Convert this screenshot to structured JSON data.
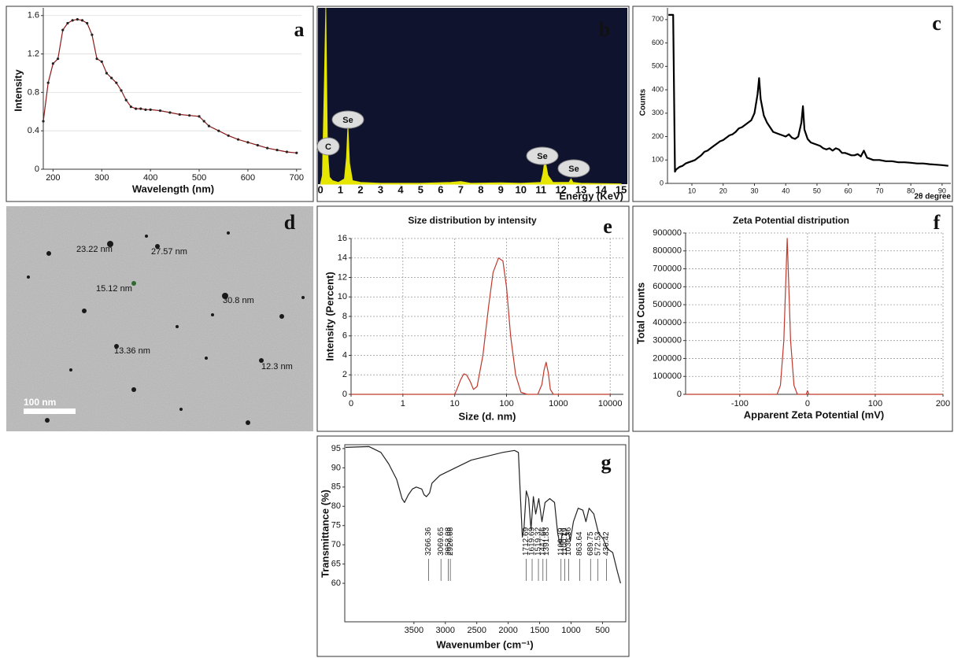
{
  "chart_data": [
    {
      "type": "line",
      "label": "a",
      "xlabel": "Wavelength (nm)",
      "ylabel": "Intensity",
      "color": "#8b1a1a",
      "markers": true,
      "grid": "y",
      "x": [
        180,
        190,
        200,
        210,
        220,
        230,
        240,
        250,
        260,
        270,
        280,
        290,
        300,
        310,
        320,
        330,
        340,
        350,
        360,
        370,
        380,
        390,
        400,
        420,
        440,
        460,
        480,
        500,
        510,
        520,
        540,
        560,
        580,
        600,
        620,
        640,
        660,
        680,
        700
      ],
      "values": [
        0.5,
        0.9,
        1.1,
        1.15,
        1.45,
        1.52,
        1.55,
        1.56,
        1.55,
        1.52,
        1.4,
        1.15,
        1.12,
        1.0,
        0.95,
        0.9,
        0.82,
        0.72,
        0.65,
        0.63,
        0.63,
        0.62,
        0.62,
        0.61,
        0.59,
        0.57,
        0.56,
        0.55,
        0.5,
        0.45,
        0.4,
        0.35,
        0.31,
        0.28,
        0.25,
        0.22,
        0.2,
        0.18,
        0.17
      ],
      "xlim": [
        180,
        710
      ],
      "ylim": [
        0,
        1.68
      ],
      "xticks": [
        200,
        300,
        400,
        500,
        600,
        700
      ],
      "yticks": [
        0,
        0.4,
        0.8,
        1.2,
        1.6
      ]
    },
    {
      "type": "area",
      "label": "b",
      "xlabel": "Energy (KeV)",
      "color": "#e6e600",
      "background": "#10132e",
      "grid": false,
      "x": [
        0,
        0.1,
        0.2,
        0.27,
        0.35,
        0.45,
        0.6,
        0.9,
        1.2,
        1.3,
        1.37,
        1.45,
        1.6,
        2,
        3,
        5,
        6.5,
        7,
        7.5,
        9,
        10,
        11,
        11.1,
        11.2,
        11.35,
        11.6,
        12.4,
        12.5,
        12.6,
        13,
        14,
        15
      ],
      "values": [
        0,
        5,
        60,
        100,
        20,
        4,
        2,
        1,
        3,
        15,
        33,
        12,
        2,
        1,
        0.5,
        0.5,
        1,
        1.5,
        0.5,
        0.8,
        0.5,
        1,
        6,
        14,
        5,
        1,
        1,
        3,
        1,
        0.5,
        0.3,
        0.2
      ],
      "annotations": [
        "C",
        "Se",
        "Se",
        "Se"
      ],
      "xlim": [
        -0.12,
        15.31
      ],
      "ylim": [
        0,
        100
      ],
      "xticks": [
        0,
        1,
        2,
        3,
        4,
        5,
        6,
        7,
        8,
        9,
        10,
        11,
        12,
        13,
        14,
        15
      ]
    },
    {
      "type": "line",
      "label": "c",
      "xlabel": "2θ degree",
      "ylabel": "Counts",
      "color": "#000000",
      "grid": false,
      "x": [
        2.5,
        4,
        4.6,
        5,
        6,
        7,
        8,
        9,
        10,
        11,
        12,
        13,
        14,
        15,
        16,
        17,
        18,
        19,
        20,
        21,
        22,
        23,
        24,
        25,
        26,
        27,
        28,
        29,
        30,
        31,
        31.5,
        32,
        33,
        34,
        35,
        36,
        37,
        38,
        39,
        40,
        41,
        42,
        43,
        44,
        45,
        45.5,
        46,
        47,
        48,
        49,
        50,
        51,
        52,
        53,
        54,
        55,
        56,
        57,
        58,
        59,
        60,
        61,
        62,
        63,
        64,
        65,
        66,
        67,
        68,
        70,
        72,
        74,
        76,
        78,
        80,
        82,
        84,
        86,
        88,
        90,
        92
      ],
      "values": [
        720,
        720,
        50,
        60,
        70,
        75,
        85,
        90,
        95,
        100,
        110,
        120,
        135,
        140,
        150,
        160,
        170,
        180,
        185,
        195,
        205,
        210,
        220,
        235,
        240,
        250,
        260,
        270,
        300,
        380,
        450,
        360,
        290,
        260,
        240,
        220,
        215,
        210,
        205,
        200,
        210,
        195,
        190,
        200,
        260,
        330,
        230,
        190,
        175,
        170,
        165,
        160,
        150,
        145,
        150,
        140,
        150,
        145,
        130,
        130,
        125,
        120,
        120,
        125,
        115,
        140,
        110,
        105,
        100,
        100,
        95,
        95,
        90,
        90,
        88,
        85,
        85,
        82,
        80,
        78,
        75
      ],
      "xlim": [
        2.2,
        92.8
      ],
      "ylim": [
        0,
        750
      ],
      "xticks": [
        10,
        20,
        30,
        40,
        50,
        60,
        70,
        80,
        90
      ],
      "yticks": [
        0,
        100,
        200,
        300,
        400,
        500,
        600,
        700
      ]
    },
    {
      "type": "line",
      "label": "e",
      "title": "Size distribution by intensity",
      "xlabel": "Size (d. nm)",
      "ylabel": "Intensity (Percent)",
      "color": "#c0392b",
      "grid": "both",
      "log_x": true,
      "x": [
        0.1,
        10,
        11,
        13,
        15,
        17,
        20,
        23,
        27,
        35,
        45,
        55,
        70,
        85,
        100,
        120,
        150,
        190,
        250,
        400,
        480,
        530,
        580,
        640,
        700,
        800,
        10000
      ],
      "values": [
        0,
        0,
        0.5,
        1.5,
        2.1,
        2.0,
        1.3,
        0.5,
        0.8,
        4,
        9,
        12.5,
        14,
        13.7,
        11,
        6,
        2,
        0.2,
        0,
        0,
        1,
        2.5,
        3.3,
        2.2,
        0.5,
        0,
        0
      ],
      "xlim": [
        0.1,
        18000
      ],
      "ylim": [
        0,
        16
      ],
      "xticks": [
        {
          "value": 0.1,
          "label": "0"
        },
        1,
        10,
        100,
        1000,
        10000
      ],
      "yticks": [
        0,
        2,
        4,
        6,
        8,
        10,
        12,
        14,
        16
      ]
    },
    {
      "type": "line",
      "label": "f",
      "title": "Zeta Potential distripution",
      "xlabel": "Apparent  Zeta Potential (mV)",
      "ylabel": "Total Counts",
      "color": "#c0392b",
      "grid": "both",
      "x": [
        -180,
        -45,
        -40,
        -35,
        -30,
        -25,
        -20,
        -15,
        -2,
        0,
        2,
        200
      ],
      "values": [
        0,
        0,
        50000,
        300000,
        870000,
        300000,
        50000,
        0,
        0,
        20000,
        0,
        0
      ],
      "xlim": [
        -180,
        200
      ],
      "ylim": [
        0,
        900000
      ],
      "xticks": [
        -100,
        0,
        100,
        200
      ],
      "yticks": [
        0,
        100000,
        200000,
        300000,
        400000,
        500000,
        600000,
        700000,
        800000,
        900000
      ]
    },
    {
      "type": "line",
      "label": "g",
      "xlabel": "Wavenumber (cm⁻¹)",
      "ylabel": "Transmittance (%)",
      "color": "#222222",
      "grid": false,
      "x": [
        4588,
        4213,
        4025,
        3900,
        3775,
        3688,
        3650,
        3588,
        3525,
        3463,
        3375,
        3338,
        3300,
        3250,
        3213,
        3088,
        2838,
        2588,
        2338,
        2088,
        1900,
        1838,
        1813,
        1775,
        1750,
        1713,
        1675,
        1638,
        1600,
        1563,
        1513,
        1463,
        1413,
        1338,
        1263,
        1213,
        1175,
        1138,
        1088,
        1038,
        1013,
        963,
        888,
        813,
        763,
        713,
        638,
        563,
        488,
        425,
        338,
        263,
        213
      ],
      "values": [
        95.3,
        95.5,
        94,
        91,
        87,
        82,
        81,
        83,
        84.5,
        85,
        84.5,
        83,
        82.5,
        83.5,
        86,
        88,
        90,
        92,
        93,
        94,
        94.5,
        94,
        85,
        72,
        74,
        84,
        82,
        74,
        82.5,
        78,
        82,
        76,
        81,
        82,
        81,
        73,
        70,
        73,
        72.5,
        73,
        71,
        76,
        79.5,
        79,
        76,
        79.5,
        78,
        73,
        71.5,
        69,
        68,
        63,
        60
      ],
      "peak_labels": [
        3266.36,
        3069.65,
        2952.08,
        2920.68,
        1712.69,
        1619.69,
        1519.32,
        1447.66,
        1391.83,
        1160.39,
        1100.19,
        1038.36,
        863.64,
        689.75,
        572.53,
        436.42
      ],
      "xlim": [
        4600,
        130
      ],
      "ylim": [
        50,
        96
      ],
      "xticks": [
        3500,
        3000,
        2500,
        2000,
        1500,
        1000,
        500
      ],
      "yticks": [
        60,
        65,
        70,
        75,
        80,
        85,
        90,
        95
      ]
    }
  ],
  "image_panel": {
    "label": "d",
    "annotations": [
      "23.22 nm",
      "27.57 nm",
      "15.12 nm",
      "30.8 nm",
      "13.36 nm",
      "12.3 nm"
    ],
    "scale_bar": "100 nm"
  }
}
